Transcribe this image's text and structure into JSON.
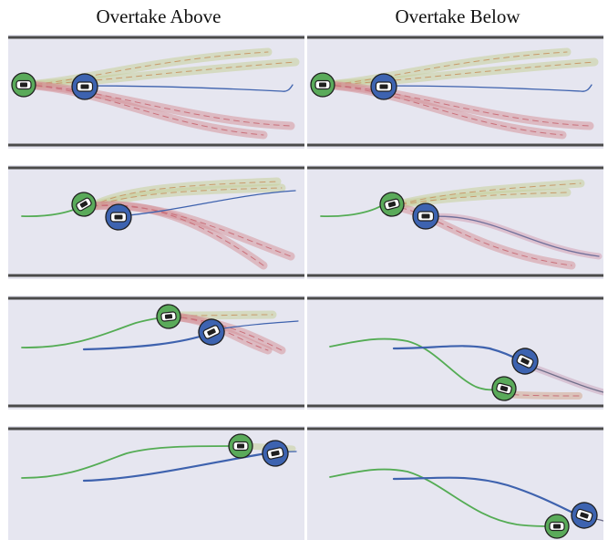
{
  "titles": {
    "left": "Overtake Above",
    "right": "Overtake Below"
  },
  "colors": {
    "road": "#e6e6f0",
    "boundary": "#4a4a4a",
    "ego_car": "#5aaa5a",
    "other_car": "#3d63b0",
    "ego_path": "#54ac54",
    "other_path": "#3e62ae",
    "plan_above": "#c7cf9a",
    "plan_below": "#d48e94",
    "chosen_line": "#6f6f9a"
  },
  "panels": [
    {
      "id": "above-1",
      "column": "overtake-above",
      "step": 1
    },
    {
      "id": "below-1",
      "column": "overtake-below",
      "step": 1
    },
    {
      "id": "above-2",
      "column": "overtake-above",
      "step": 2
    },
    {
      "id": "below-2",
      "column": "overtake-below",
      "step": 2
    },
    {
      "id": "above-3",
      "column": "overtake-above",
      "step": 3
    },
    {
      "id": "below-3",
      "column": "overtake-below",
      "step": 3
    },
    {
      "id": "above-4",
      "column": "overtake-above",
      "step": 4
    },
    {
      "id": "below-4",
      "column": "overtake-below",
      "step": 4
    }
  ]
}
